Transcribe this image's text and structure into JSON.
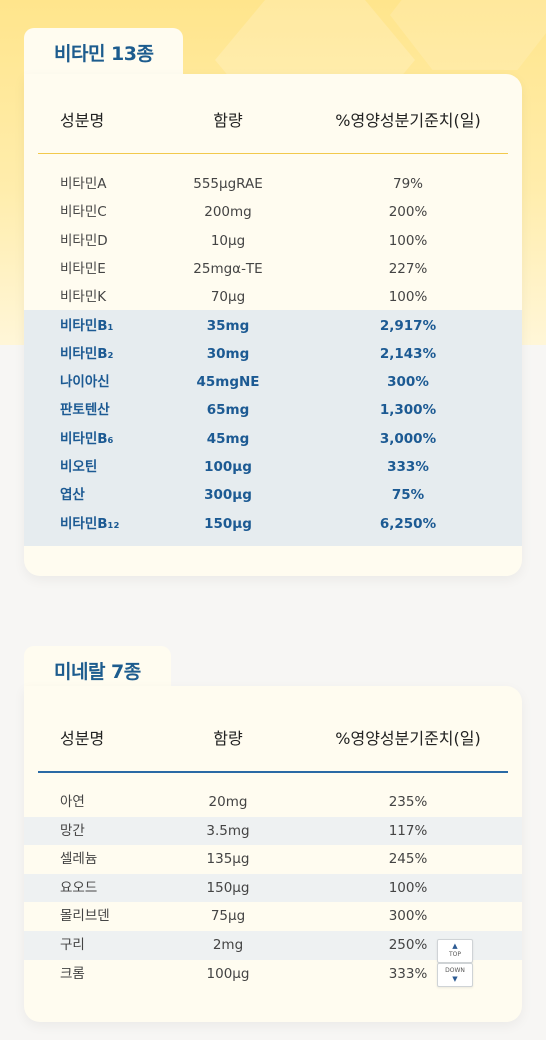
{
  "vitamins": {
    "title": "비타민 13종",
    "headers": {
      "name": "성분명",
      "amount": "함량",
      "rda": "%영양성분기준치(일)"
    },
    "rows": [
      {
        "name": "비타민A",
        "amount": "555μgRAE",
        "rda": "79%"
      },
      {
        "name": "비타민C",
        "amount": "200mg",
        "rda": "200%"
      },
      {
        "name": "비타민D",
        "amount": "10μg",
        "rda": "100%"
      },
      {
        "name": "비타민E",
        "amount": "25mgα-TE",
        "rda": "227%"
      },
      {
        "name": "비타민K",
        "amount": "70μg",
        "rda": "100%"
      },
      {
        "name": "비타민B₁",
        "amount": "35mg",
        "rda": "2,917%"
      },
      {
        "name": "비타민B₂",
        "amount": "30mg",
        "rda": "2,143%"
      },
      {
        "name": "나이아신",
        "amount": "45mgNE",
        "rda": "300%"
      },
      {
        "name": "판토텐산",
        "amount": "65mg",
        "rda": "1,300%"
      },
      {
        "name": "비타민B₆",
        "amount": "45mg",
        "rda": "3,000%"
      },
      {
        "name": "비오틴",
        "amount": "100μg",
        "rda": "333%"
      },
      {
        "name": "엽산",
        "amount": "300μg",
        "rda": "75%"
      },
      {
        "name": "비타민B₁₂",
        "amount": "150μg",
        "rda": "6,250%"
      }
    ],
    "highlight_color": "#1c5a93",
    "rule_color": "#f2c94c"
  },
  "minerals": {
    "title": "미네랄 7종",
    "headers": {
      "name": "성분명",
      "amount": "함량",
      "rda": "%영양성분기준치(일)"
    },
    "rows": [
      {
        "name": "아연",
        "amount": "20mg",
        "rda": "235%"
      },
      {
        "name": "망간",
        "amount": "3.5mg",
        "rda": "117%"
      },
      {
        "name": "셀레늄",
        "amount": "135μg",
        "rda": "245%"
      },
      {
        "name": "요오드",
        "amount": "150μg",
        "rda": "100%"
      },
      {
        "name": "몰리브덴",
        "amount": "75μg",
        "rda": "300%"
      },
      {
        "name": "구리",
        "amount": "2mg",
        "rda": "250%"
      },
      {
        "name": "크롬",
        "amount": "100μg",
        "rda": "333%"
      }
    ],
    "rule_color": "#2a6aa5"
  },
  "scroll": {
    "top_label": "TOP",
    "down_label": "DOWN",
    "top_icon": "arrow-up-icon",
    "down_icon": "arrow-down-icon"
  }
}
